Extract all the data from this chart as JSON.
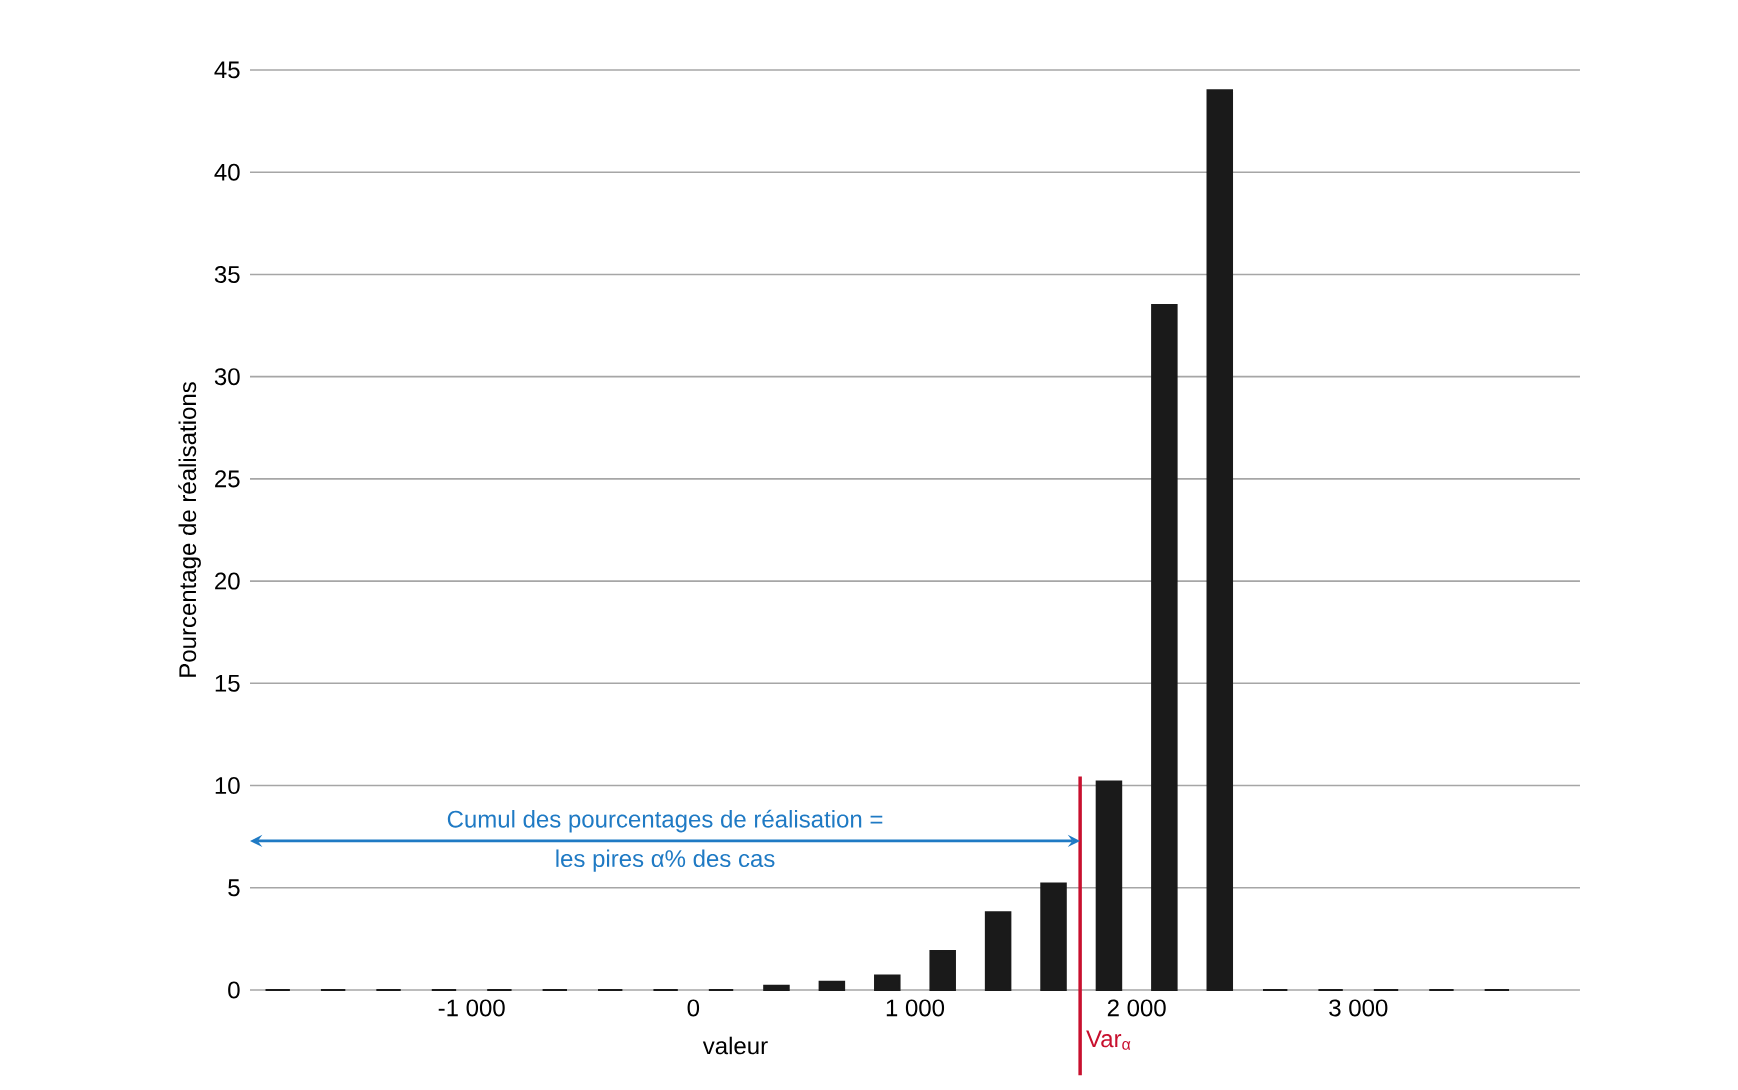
{
  "chart_data": {
    "type": "bar",
    "xlabel": "valeur",
    "ylabel": "Pourcentage de réalisations",
    "x": [
      -1875,
      -1625,
      -1375,
      -1125,
      -875,
      -625,
      -375,
      -125,
      125,
      375,
      625,
      875,
      1125,
      1375,
      1625,
      1875,
      2125,
      2375,
      2625,
      2875,
      3125,
      3375,
      3625
    ],
    "values": [
      0,
      0,
      0,
      0,
      0,
      0,
      0,
      0,
      0,
      0.2,
      0.4,
      0.7,
      1.9,
      3.8,
      5.2,
      10.2,
      33.5,
      44,
      0,
      0,
      0,
      0,
      0
    ],
    "color": "#1a1a1a",
    "xlim": [
      -2000,
      4000
    ],
    "xticks": [
      {
        "value": -1000,
        "label": "-1 000"
      },
      0,
      {
        "value": 1000,
        "label": "1 000"
      },
      {
        "value": 2000,
        "label": "2 000"
      },
      {
        "value": 3000,
        "label": "3 000"
      }
    ],
    "ylim": [
      0,
      45
    ],
    "yticks": [
      0,
      5,
      10,
      15,
      20,
      25,
      30,
      35,
      40,
      45
    ],
    "grid": "y",
    "ref_lines": [
      {
        "axis": "x",
        "value": 1745,
        "label": "Var$_{α}$",
        "color": "#c8102e"
      }
    ],
    "annotations": [
      "Cumul des pourcentages de réalisation =",
      "les pires α% des cas"
    ]
  }
}
